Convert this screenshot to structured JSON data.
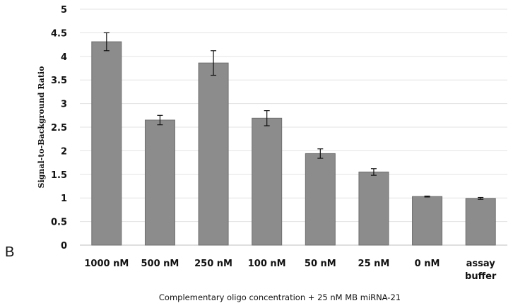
{
  "chart_data": {
    "type": "bar",
    "panel_label": "B",
    "title": "",
    "xlabel": "Complementary oligo concentration  + 25 nM MB miRNA-21",
    "ylabel": "Signal-to-Background Ratio",
    "ylim": [
      0,
      5
    ],
    "yticks": [
      "0",
      "0.5",
      "1",
      "1.5",
      "2",
      "2.5",
      "3",
      "3.5",
      "4",
      "4.5",
      "5"
    ],
    "categories": [
      [
        "1000 nM"
      ],
      [
        "500 nM"
      ],
      [
        "250 nM"
      ],
      [
        "100 nM"
      ],
      [
        "50 nM"
      ],
      [
        "25 nM"
      ],
      [
        "0 nM"
      ],
      [
        "assay",
        "buffer"
      ]
    ],
    "values": [
      4.31,
      2.65,
      3.86,
      2.69,
      1.94,
      1.55,
      1.03,
      0.99
    ],
    "errors": [
      0.19,
      0.1,
      0.26,
      0.16,
      0.1,
      0.07,
      0.01,
      0.02
    ],
    "grid": true,
    "colors": {
      "bar_fill": "#8c8c8c",
      "bar_stroke": "#6e6e6e",
      "grid": "#e3e3e3",
      "error_bar": "#111111"
    }
  }
}
